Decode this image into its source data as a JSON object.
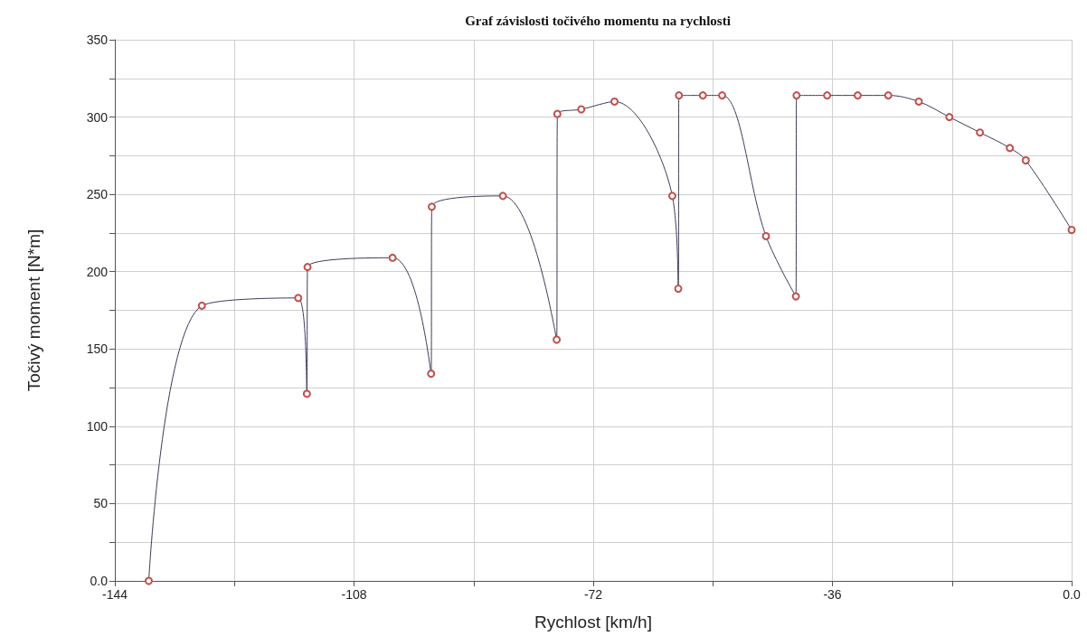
{
  "chart_data": {
    "type": "line",
    "title": "Graf závislosti točivého momentu na rychlosti",
    "xlabel": "Rychlost [km/h]",
    "ylabel": "Točivý moment [N*m]",
    "xlim": [
      -144,
      0
    ],
    "xticks": [
      -144,
      {
        "value": -126,
        "label": null
      },
      -108,
      {
        "value": -90,
        "label": null
      },
      -72,
      {
        "value": -54,
        "label": null
      },
      -36,
      {
        "value": -18,
        "label": null
      },
      {
        "value": 0,
        "label": "0.0"
      }
    ],
    "ylim": [
      0,
      350
    ],
    "yticks": [
      {
        "value": 0,
        "label": "0.0"
      },
      {
        "value": 25,
        "label": null
      },
      50,
      {
        "value": 75,
        "label": null
      },
      100,
      {
        "value": 125,
        "label": null
      },
      150,
      {
        "value": 175,
        "label": null
      },
      200,
      {
        "value": 225,
        "label": null
      },
      250,
      {
        "value": 275,
        "label": null
      },
      300,
      {
        "value": 325,
        "label": null
      },
      350
    ],
    "grid": true,
    "marker": "circle",
    "line_style": "solid",
    "series": [
      {
        "color": "#3c3c5a",
        "x": [
          -138.9,
          -130.9,
          -116.4,
          -115.1,
          -115.0,
          -102.2,
          -96.4,
          -96.3,
          -85.6,
          -77.5,
          -77.4,
          -73.8,
          -68.8,
          -60.1,
          -59.2,
          -59.1,
          -55.5,
          -52.6,
          -46.0,
          -41.5,
          -41.4,
          -36.8,
          -32.2,
          -27.6,
          -23.0,
          -18.4,
          -13.8,
          -9.3,
          -6.9,
          0
        ],
        "values": [
          0,
          178,
          183,
          121,
          203,
          209,
          134,
          242,
          249,
          156,
          302,
          305,
          310,
          249,
          189,
          314,
          314,
          314,
          223,
          184,
          314,
          314,
          314,
          314,
          310,
          300,
          290,
          280,
          272,
          227
        ],
        "colors": [
          "#c0504d",
          "#c0504d",
          "#c0504d",
          "#c0504d",
          "#c0504d",
          "#c0504d",
          "#c0504d",
          "#c0504d",
          "#c0504d",
          "#c0504d",
          "#c0504d",
          "#c0504d",
          "#c0504d",
          "#c0504d",
          "#c0504d",
          "#c0504d",
          "#c0504d",
          "#c0504d",
          "#c0504d",
          "#c0504d",
          "#c0504d",
          "#c0504d",
          "#c0504d",
          "#c0504d",
          "#c0504d",
          "#c0504d",
          "#c0504d",
          "#c0504d",
          "#c0504d",
          "#c0504d"
        ]
      }
    ]
  }
}
